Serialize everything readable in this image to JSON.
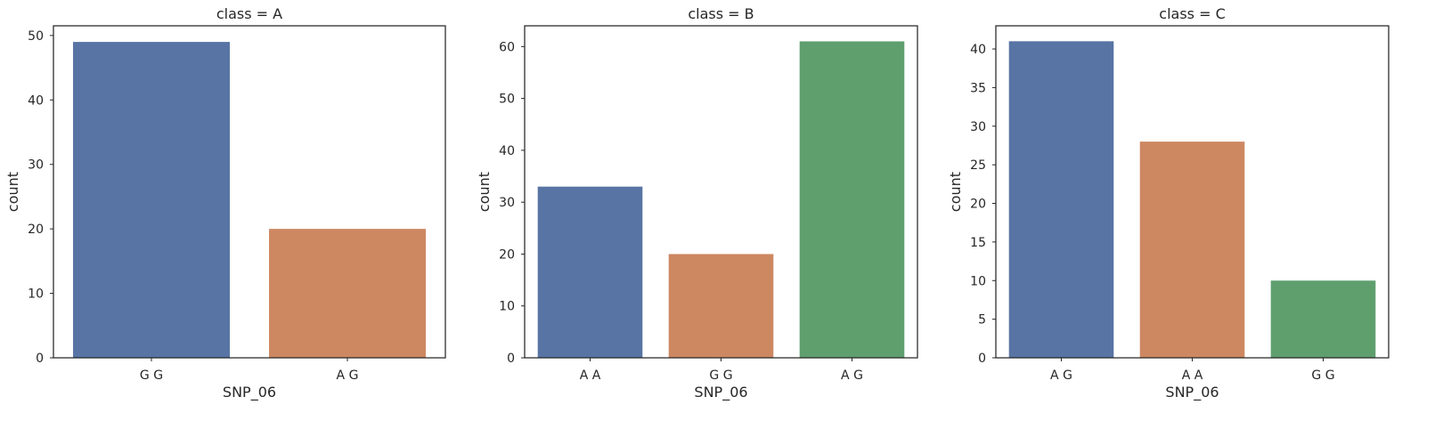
{
  "chart_data": [
    {
      "type": "bar",
      "title": "class = A",
      "xlabel": "SNP_06",
      "ylabel": "count",
      "categories": [
        "G G",
        "A G"
      ],
      "values": [
        49,
        20
      ],
      "colors": [
        "#5874a4",
        "#cd8862"
      ],
      "ylim": [
        0,
        51.5
      ],
      "yticks": [
        0,
        10,
        20,
        30,
        40,
        50
      ],
      "grid": false
    },
    {
      "type": "bar",
      "title": "class = B",
      "xlabel": "SNP_06",
      "ylabel": "count",
      "categories": [
        "A A",
        "G G",
        "A G"
      ],
      "values": [
        33,
        20,
        61
      ],
      "colors": [
        "#5874a4",
        "#cd8862",
        "#5f9f6e"
      ],
      "ylim": [
        0,
        64
      ],
      "yticks": [
        0,
        10,
        20,
        30,
        40,
        50,
        60
      ],
      "grid": false
    },
    {
      "type": "bar",
      "title": "class = C",
      "xlabel": "SNP_06",
      "ylabel": "count",
      "categories": [
        "A G",
        "A A",
        "G G"
      ],
      "values": [
        41,
        28,
        10
      ],
      "colors": [
        "#5874a4",
        "#cd8862",
        "#5f9f6e"
      ],
      "ylim": [
        0,
        43
      ],
      "yticks": [
        0,
        5,
        10,
        15,
        20,
        25,
        30,
        35,
        40
      ],
      "grid": false
    }
  ]
}
